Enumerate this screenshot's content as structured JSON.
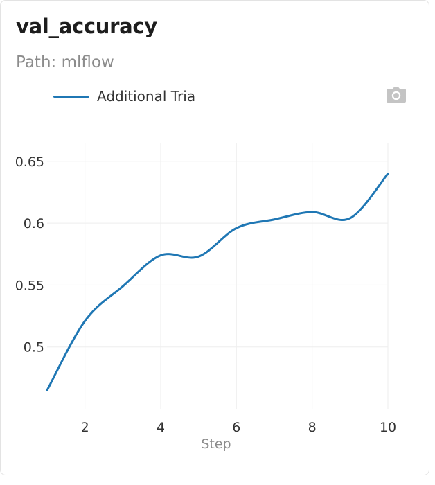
{
  "card": {
    "title": "val_accuracy",
    "subtitle": "Path: mlflow",
    "camera_icon": "camera-icon"
  },
  "colors": {
    "series": "#1f77b4",
    "grid": "#eeeeee",
    "tick_text": "#333333",
    "axis_title": "#8c8c8c"
  },
  "chart_data": {
    "type": "line",
    "title": "val_accuracy",
    "xlabel": "Step",
    "ylabel": "",
    "xlim": [
      1,
      10
    ],
    "ylim": [
      0.45,
      0.665
    ],
    "x_ticks": [
      2,
      4,
      6,
      8,
      10
    ],
    "x_tick_labels": [
      "2",
      "4",
      "6",
      "8",
      "10"
    ],
    "y_ticks": [
      0.5,
      0.55,
      0.6,
      0.65
    ],
    "y_tick_labels": [
      "0.5",
      "0.55",
      "0.6",
      "0.65"
    ],
    "grid": true,
    "legend_position": "top-left",
    "series": [
      {
        "name": "Additional Tria",
        "x": [
          1,
          2,
          3,
          4,
          5,
          6,
          7,
          8,
          9,
          10
        ],
        "y": [
          0.465,
          0.521,
          0.549,
          0.574,
          0.573,
          0.596,
          0.603,
          0.609,
          0.604,
          0.64
        ]
      }
    ]
  }
}
